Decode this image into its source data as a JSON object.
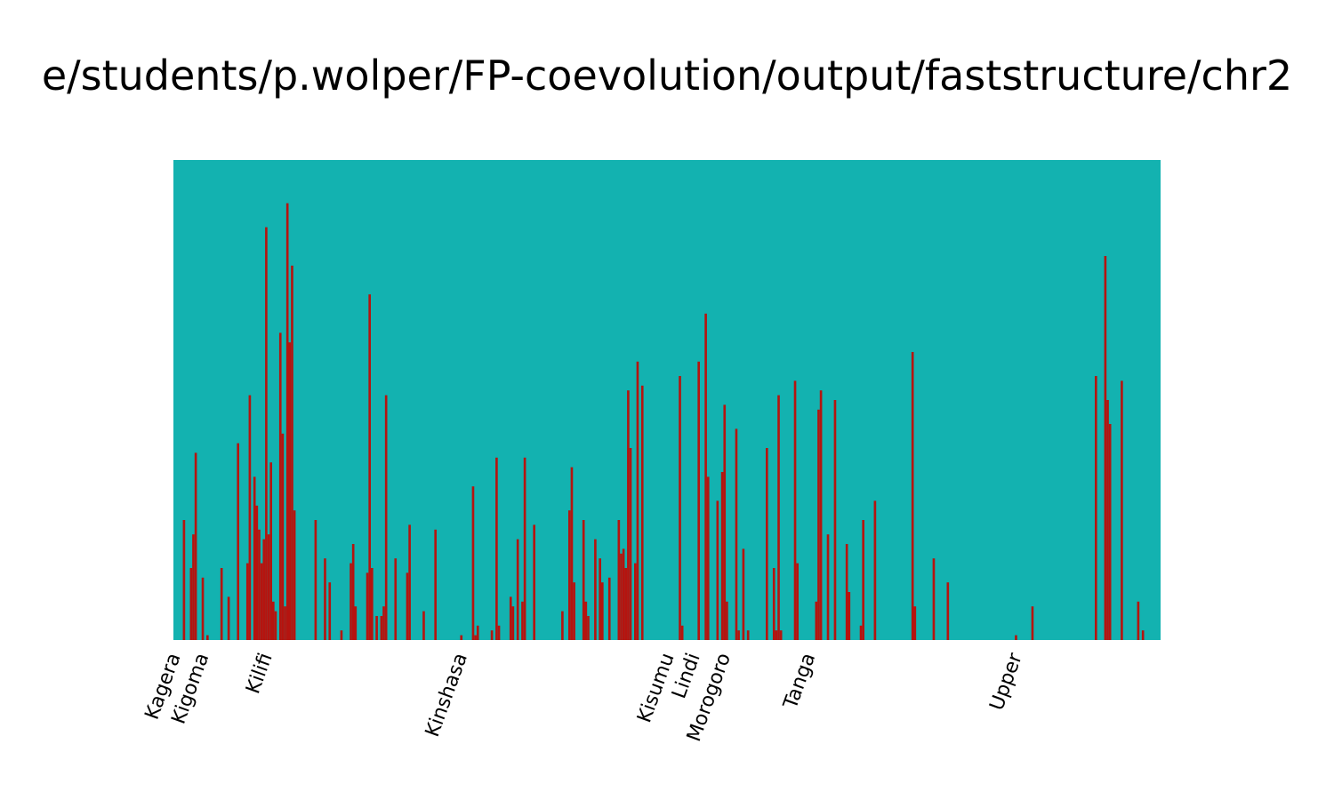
{
  "chart_data": {
    "type": "bar",
    "stacked": true,
    "title": "e/students/p.wolper/FP-coevolution/output/faststructure/chr2",
    "xlabel": "",
    "ylabel": "",
    "ylim": [
      0,
      1
    ],
    "grid": false,
    "legend": "none",
    "colors": {
      "background_component": "#13b2b0",
      "minor_component": "#b5140f"
    },
    "group_labels": [
      {
        "label": "Kagera",
        "index": 0
      },
      {
        "label": "Kigoma",
        "index": 12
      },
      {
        "label": "Kilifi",
        "index": 39
      },
      {
        "label": "Kinshasa",
        "index": 122
      },
      {
        "label": "Kisumu",
        "index": 210
      },
      {
        "label": "Lindi",
        "index": 221
      },
      {
        "label": "Morogoro",
        "index": 234
      },
      {
        "label": "Tanga",
        "index": 270
      },
      {
        "label": "Upper",
        "index": 358
      }
    ],
    "n_samples": 420,
    "series": [
      {
        "name": "",
        "color": "#b5140f",
        "values": [
          [
            4,
            0.25
          ],
          [
            7,
            0.15
          ],
          [
            8,
            0.22
          ],
          [
            9,
            0.39
          ],
          [
            12,
            0.13
          ],
          [
            14,
            0.01
          ],
          [
            20,
            0.15
          ],
          [
            23,
            0.09
          ],
          [
            27,
            0.41
          ],
          [
            31,
            0.16
          ],
          [
            32,
            0.51
          ],
          [
            34,
            0.34
          ],
          [
            35,
            0.28
          ],
          [
            36,
            0.23
          ],
          [
            37,
            0.16
          ],
          [
            38,
            0.21
          ],
          [
            39,
            0.86
          ],
          [
            40,
            0.22
          ],
          [
            41,
            0.37
          ],
          [
            42,
            0.08
          ],
          [
            43,
            0.06
          ],
          [
            45,
            0.64
          ],
          [
            46,
            0.43
          ],
          [
            47,
            0.07
          ],
          [
            48,
            0.91
          ],
          [
            49,
            0.62
          ],
          [
            50,
            0.78
          ],
          [
            51,
            0.27
          ],
          [
            60,
            0.25
          ],
          [
            64,
            0.17
          ],
          [
            66,
            0.12
          ],
          [
            71,
            0.02
          ],
          [
            75,
            0.16
          ],
          [
            76,
            0.2
          ],
          [
            77,
            0.07
          ],
          [
            82,
            0.14
          ],
          [
            83,
            0.72
          ],
          [
            84,
            0.15
          ],
          [
            86,
            0.05
          ],
          [
            88,
            0.05
          ],
          [
            89,
            0.07
          ],
          [
            90,
            0.51
          ],
          [
            94,
            0.17
          ],
          [
            99,
            0.14
          ],
          [
            100,
            0.24
          ],
          [
            106,
            0.06
          ],
          [
            111,
            0.23
          ],
          [
            122,
            0.01
          ],
          [
            127,
            0.32
          ],
          [
            128,
            0.01
          ],
          [
            129,
            0.03
          ],
          [
            135,
            0.02
          ],
          [
            137,
            0.38
          ],
          [
            138,
            0.03
          ],
          [
            143,
            0.09
          ],
          [
            144,
            0.07
          ],
          [
            146,
            0.21
          ],
          [
            148,
            0.08
          ],
          [
            149,
            0.38
          ],
          [
            153,
            0.24
          ],
          [
            165,
            0.06
          ],
          [
            168,
            0.27
          ],
          [
            169,
            0.36
          ],
          [
            170,
            0.12
          ],
          [
            174,
            0.25
          ],
          [
            175,
            0.08
          ],
          [
            176,
            0.05
          ],
          [
            179,
            0.21
          ],
          [
            181,
            0.17
          ],
          [
            182,
            0.12
          ],
          [
            185,
            0.13
          ],
          [
            189,
            0.25
          ],
          [
            190,
            0.18
          ],
          [
            191,
            0.19
          ],
          [
            192,
            0.15
          ],
          [
            193,
            0.52
          ],
          [
            194,
            0.4
          ],
          [
            196,
            0.16
          ],
          [
            197,
            0.58
          ],
          [
            199,
            0.53
          ],
          [
            215,
            0.55
          ],
          [
            216,
            0.03
          ],
          [
            223,
            0.58
          ],
          [
            226,
            0.68
          ],
          [
            227,
            0.34
          ],
          [
            231,
            0.29
          ],
          [
            233,
            0.35
          ],
          [
            234,
            0.49
          ],
          [
            235,
            0.08
          ],
          [
            239,
            0.44
          ],
          [
            240,
            0.02
          ],
          [
            242,
            0.19
          ],
          [
            244,
            0.02
          ],
          [
            252,
            0.4
          ],
          [
            255,
            0.15
          ],
          [
            256,
            0.02
          ],
          [
            257,
            0.51
          ],
          [
            258,
            0.02
          ],
          [
            264,
            0.54
          ],
          [
            265,
            0.16
          ],
          [
            273,
            0.08
          ],
          [
            274,
            0.48
          ],
          [
            275,
            0.52
          ],
          [
            278,
            0.22
          ],
          [
            281,
            0.5
          ],
          [
            286,
            0.2
          ],
          [
            287,
            0.1
          ],
          [
            292,
            0.03
          ],
          [
            293,
            0.25
          ],
          [
            298,
            0.29
          ],
          [
            314,
            0.6
          ],
          [
            315,
            0.07
          ],
          [
            323,
            0.17
          ],
          [
            329,
            0.12
          ],
          [
            358,
            0.01
          ],
          [
            365,
            0.07
          ],
          [
            392,
            0.55
          ],
          [
            396,
            0.8
          ],
          [
            397,
            0.5
          ],
          [
            398,
            0.45
          ],
          [
            403,
            0.54
          ],
          [
            410,
            0.08
          ],
          [
            412,
            0.02
          ]
        ]
      }
    ]
  }
}
